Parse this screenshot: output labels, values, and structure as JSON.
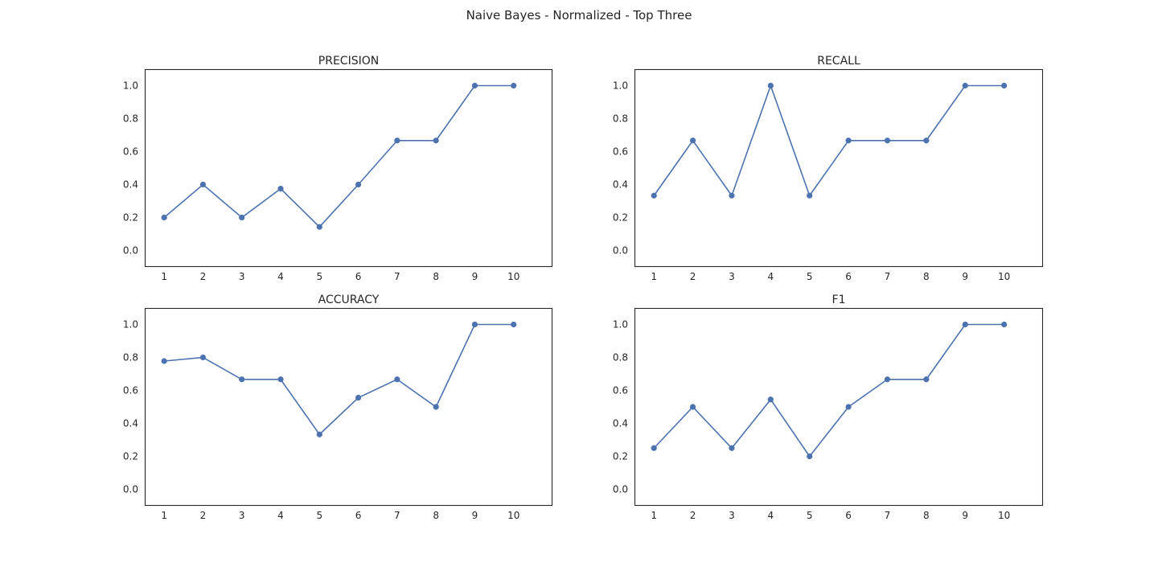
{
  "figure": {
    "title": "Naive Bayes - Normalized - Top Three"
  },
  "style": {
    "line_color": "#4c72b0",
    "axis_color": "#262626",
    "background": "#ffffff"
  },
  "chart_data": [
    {
      "type": "line",
      "title": "PRECISION",
      "xlabel": "",
      "ylabel": "",
      "x": [
        1,
        2,
        3,
        4,
        5,
        6,
        7,
        8,
        9,
        10
      ],
      "values": [
        0.2,
        0.4,
        0.2,
        0.375,
        0.143,
        0.4,
        0.667,
        0.667,
        1.0,
        1.0
      ],
      "xlim": [
        0.5,
        11
      ],
      "ylim": [
        -0.1,
        1.1
      ],
      "yticks": [
        0.0,
        0.2,
        0.4,
        0.6,
        0.8,
        1.0
      ],
      "ytick_labels": [
        "0.0",
        "0.2",
        "0.4",
        "0.6",
        "0.8",
        "1.0"
      ],
      "xtick_labels": [
        "1",
        "2",
        "3",
        "4",
        "5",
        "6",
        "7",
        "8",
        "9",
        "10"
      ],
      "grid": false,
      "marker": "circle"
    },
    {
      "type": "line",
      "title": "RECALL",
      "xlabel": "",
      "ylabel": "",
      "x": [
        1,
        2,
        3,
        4,
        5,
        6,
        7,
        8,
        9,
        10
      ],
      "values": [
        0.333,
        0.667,
        0.333,
        1.0,
        0.333,
        0.667,
        0.667,
        0.667,
        1.0,
        1.0
      ],
      "xlim": [
        0.5,
        11
      ],
      "ylim": [
        -0.1,
        1.1
      ],
      "yticks": [
        0.0,
        0.2,
        0.4,
        0.6,
        0.8,
        1.0
      ],
      "ytick_labels": [
        "0.0",
        "0.2",
        "0.4",
        "0.6",
        "0.8",
        "1.0"
      ],
      "xtick_labels": [
        "1",
        "2",
        "3",
        "4",
        "5",
        "6",
        "7",
        "8",
        "9",
        "10"
      ],
      "grid": false,
      "marker": "circle"
    },
    {
      "type": "line",
      "title": "ACCURACY",
      "xlabel": "",
      "ylabel": "",
      "x": [
        1,
        2,
        3,
        4,
        5,
        6,
        7,
        8,
        9,
        10
      ],
      "values": [
        0.778,
        0.8,
        0.667,
        0.667,
        0.333,
        0.556,
        0.667,
        0.5,
        1.0,
        1.0
      ],
      "xlim": [
        0.5,
        11
      ],
      "ylim": [
        -0.1,
        1.1
      ],
      "yticks": [
        0.0,
        0.2,
        0.4,
        0.6,
        0.8,
        1.0
      ],
      "ytick_labels": [
        "0.0",
        "0.2",
        "0.4",
        "0.6",
        "0.8",
        "1.0"
      ],
      "xtick_labels": [
        "1",
        "2",
        "3",
        "4",
        "5",
        "6",
        "7",
        "8",
        "9",
        "10"
      ],
      "grid": false,
      "marker": "circle"
    },
    {
      "type": "line",
      "title": "F1",
      "xlabel": "",
      "ylabel": "",
      "x": [
        1,
        2,
        3,
        4,
        5,
        6,
        7,
        8,
        9,
        10
      ],
      "values": [
        0.25,
        0.5,
        0.25,
        0.545,
        0.2,
        0.5,
        0.667,
        0.667,
        1.0,
        1.0
      ],
      "xlim": [
        0.5,
        11
      ],
      "ylim": [
        -0.1,
        1.1
      ],
      "yticks": [
        0.0,
        0.2,
        0.4,
        0.6,
        0.8,
        1.0
      ],
      "ytick_labels": [
        "0.0",
        "0.2",
        "0.4",
        "0.6",
        "0.8",
        "1.0"
      ],
      "xtick_labels": [
        "1",
        "2",
        "3",
        "4",
        "5",
        "6",
        "7",
        "8",
        "9",
        "10"
      ],
      "grid": false,
      "marker": "circle"
    }
  ]
}
